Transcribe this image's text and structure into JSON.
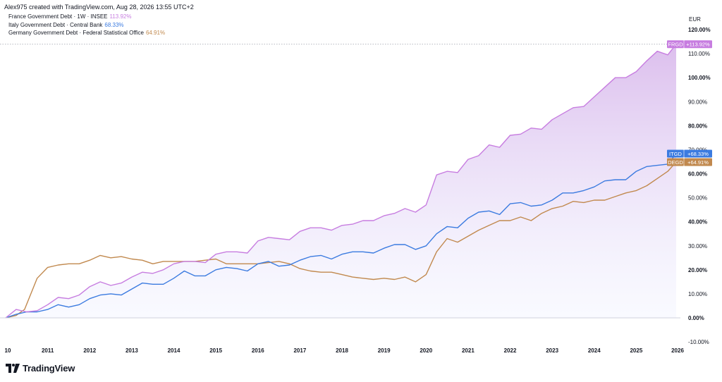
{
  "header": {
    "text": "Alex975 created with TradingView.com, Aug 28, 2026 13:55 UTC+2"
  },
  "brand": {
    "name": "TradingView"
  },
  "legend": [
    {
      "label": "France Government Debt · 1W · INSEE",
      "value": "113.92%",
      "color": "#c77de0"
    },
    {
      "label": "Italy Government Debt · Central Bank",
      "value": "68.33%",
      "color": "#3b7be0"
    },
    {
      "label": "Germany Government Debt · Federal Statistical Office",
      "value": "64.91%",
      "color": "#c1894e"
    }
  ],
  "chart_data": {
    "type": "line",
    "currency_label": "EUR",
    "y_axis_ticks": [
      "120.00%",
      "110.00%",
      "100.00%",
      "90.00%",
      "80.00%",
      "70.00%",
      "60.00%",
      "50.00%",
      "40.00%",
      "30.00%",
      "20.00%",
      "10.00%",
      "0.00%",
      "-10.00%"
    ],
    "x_axis_ticks": [
      "10",
      "2011",
      "2012",
      "2013",
      "2014",
      "2015",
      "2016",
      "2017",
      "2018",
      "2019",
      "2020",
      "2021",
      "2022",
      "2023",
      "2024",
      "2025",
      "2026"
    ],
    "ylim": [
      -10,
      120
    ],
    "xlim": [
      2010.0,
      2026.0
    ],
    "series": [
      {
        "name": "FRGD",
        "color": "#c77de0",
        "end_label": "+113.92%",
        "x": [
          2010.0,
          2010.25,
          2010.5,
          2010.75,
          2011.0,
          2011.25,
          2011.5,
          2011.75,
          2012.0,
          2012.25,
          2012.5,
          2012.75,
          2013.0,
          2013.25,
          2013.5,
          2013.75,
          2014.0,
          2014.25,
          2014.5,
          2014.75,
          2015.0,
          2015.25,
          2015.5,
          2015.75,
          2016.0,
          2016.25,
          2016.5,
          2016.75,
          2017.0,
          2017.25,
          2017.5,
          2017.75,
          2018.0,
          2018.25,
          2018.5,
          2018.75,
          2019.0,
          2019.25,
          2019.5,
          2019.75,
          2020.0,
          2020.25,
          2020.5,
          2020.75,
          2021.0,
          2021.25,
          2021.5,
          2021.75,
          2022.0,
          2022.25,
          2022.5,
          2022.75,
          2023.0,
          2023.25,
          2023.5,
          2023.75,
          2024.0,
          2024.25,
          2024.5,
          2024.75,
          2025.0,
          2025.25,
          2025.5,
          2025.75,
          2025.95
        ],
        "values": [
          0,
          3.5,
          2.5,
          3,
          5.5,
          8.5,
          8,
          9.5,
          13,
          15,
          13.5,
          14.5,
          17,
          19,
          18.5,
          20,
          22.5,
          23.5,
          23.5,
          23,
          26.5,
          27.5,
          27.5,
          27,
          32,
          33.5,
          33,
          32.5,
          36,
          37.5,
          37.5,
          36.5,
          38.5,
          39,
          40.5,
          40.5,
          42.5,
          43.5,
          45.5,
          44,
          47,
          59.5,
          61,
          60.5,
          66,
          67.5,
          72,
          71,
          76,
          76.5,
          79,
          78.5,
          82.5,
          85,
          87.5,
          88,
          92,
          96,
          100,
          100,
          102.5,
          107,
          111,
          109.5,
          113.92
        ]
      },
      {
        "name": "ITGD",
        "color": "#3b7be0",
        "end_label": "+68.33%",
        "x": [
          2010.0,
          2010.25,
          2010.5,
          2010.75,
          2011.0,
          2011.25,
          2011.5,
          2011.75,
          2012.0,
          2012.25,
          2012.5,
          2012.75,
          2013.0,
          2013.25,
          2013.5,
          2013.75,
          2014.0,
          2014.25,
          2014.5,
          2014.75,
          2015.0,
          2015.25,
          2015.5,
          2015.75,
          2016.0,
          2016.25,
          2016.5,
          2016.75,
          2017.0,
          2017.25,
          2017.5,
          2017.75,
          2018.0,
          2018.25,
          2018.5,
          2018.75,
          2019.0,
          2019.25,
          2019.5,
          2019.75,
          2020.0,
          2020.25,
          2020.5,
          2020.75,
          2021.0,
          2021.25,
          2021.5,
          2021.75,
          2022.0,
          2022.25,
          2022.5,
          2022.75,
          2023.0,
          2023.25,
          2023.5,
          2023.75,
          2024.0,
          2024.25,
          2024.5,
          2024.75,
          2025.0,
          2025.25,
          2025.5,
          2025.75,
          2025.95
        ],
        "values": [
          0,
          1.5,
          2.5,
          2.5,
          3.5,
          5.5,
          4.5,
          5.5,
          8,
          9.5,
          10,
          9.5,
          12,
          14.5,
          14,
          14,
          16.5,
          19.5,
          17.5,
          17.5,
          20,
          21,
          20.5,
          19.5,
          22.5,
          23.5,
          21.5,
          22,
          24,
          25.5,
          26,
          24.5,
          26.5,
          27.5,
          27.5,
          27,
          29,
          30.5,
          30.5,
          28.5,
          30,
          35,
          38,
          37.5,
          41.5,
          44,
          44.5,
          43,
          47.5,
          48,
          46.5,
          47,
          49,
          52,
          52,
          53,
          54.5,
          57,
          57.5,
          57.5,
          61,
          63,
          63.5,
          64,
          68.33
        ]
      },
      {
        "name": "DEGD",
        "color": "#c1894e",
        "end_label": "+64.91%",
        "x": [
          2010.0,
          2010.25,
          2010.45,
          2010.75,
          2011.0,
          2011.25,
          2011.5,
          2011.75,
          2012.0,
          2012.25,
          2012.5,
          2012.75,
          2013.0,
          2013.25,
          2013.5,
          2013.75,
          2014.0,
          2014.25,
          2014.5,
          2014.75,
          2015.0,
          2015.25,
          2015.5,
          2015.75,
          2016.0,
          2016.25,
          2016.5,
          2016.75,
          2017.0,
          2017.25,
          2017.5,
          2017.75,
          2018.0,
          2018.25,
          2018.5,
          2018.75,
          2019.0,
          2019.25,
          2019.5,
          2019.75,
          2020.0,
          2020.25,
          2020.5,
          2020.75,
          2021.0,
          2021.25,
          2021.5,
          2021.75,
          2022.0,
          2022.25,
          2022.5,
          2022.75,
          2023.0,
          2023.25,
          2023.5,
          2023.75,
          2024.0,
          2024.25,
          2024.5,
          2024.75,
          2025.0,
          2025.25,
          2025.5,
          2025.75,
          2025.95
        ],
        "values": [
          0,
          1,
          3.5,
          16.5,
          21,
          22,
          22.5,
          22.5,
          24,
          26,
          25,
          25.5,
          24.5,
          24,
          22.5,
          23.5,
          23.5,
          23.5,
          23.5,
          24,
          24.5,
          22.5,
          22.5,
          22.5,
          22.5,
          23,
          23.5,
          22.5,
          20.5,
          19.5,
          19,
          19,
          18,
          17,
          16.5,
          16,
          16.5,
          16,
          17,
          15,
          18,
          27.5,
          33,
          31.5,
          34,
          36.5,
          38.5,
          40.5,
          40.5,
          42,
          40.5,
          43.5,
          45.5,
          46.5,
          48.5,
          48,
          49,
          49,
          50.5,
          52,
          53,
          55,
          58,
          61,
          64.91
        ]
      }
    ]
  }
}
